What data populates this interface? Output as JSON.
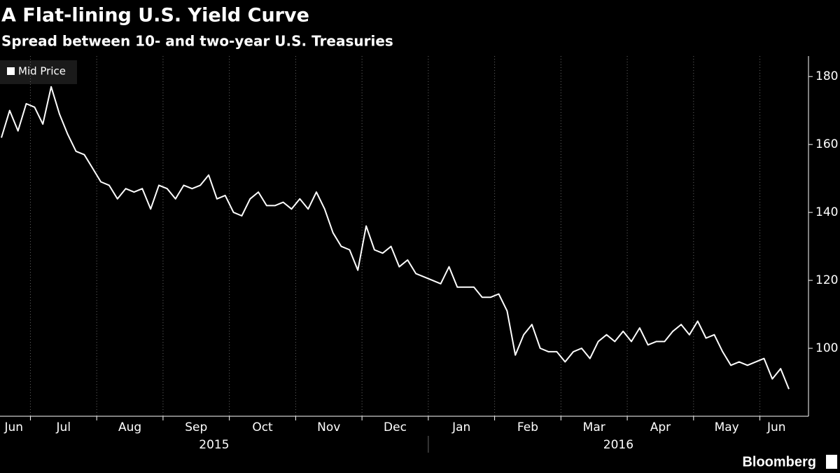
{
  "chart_data": {
    "type": "line",
    "title": "A Flat-lining U.S. Yield Curve",
    "subtitle": "Spread between 10- and two-year U.S. Treasuries",
    "source": "Bloomberg",
    "x": [
      "2015-06",
      "2015-06",
      "2015-06",
      "2015-06",
      "2015-07",
      "2015-07",
      "2015-07",
      "2015-07",
      "2015-07",
      "2015-07",
      "2015-07",
      "2015-07",
      "2015-08",
      "2015-08",
      "2015-08",
      "2015-08",
      "2015-08",
      "2015-08",
      "2015-08",
      "2015-08",
      "2015-09",
      "2015-09",
      "2015-09",
      "2015-09",
      "2015-09",
      "2015-09",
      "2015-09",
      "2015-09",
      "2015-10",
      "2015-10",
      "2015-10",
      "2015-10",
      "2015-10",
      "2015-10",
      "2015-10",
      "2015-10",
      "2015-11",
      "2015-11",
      "2015-11",
      "2015-11",
      "2015-11",
      "2015-11",
      "2015-11",
      "2015-11",
      "2015-12",
      "2015-12",
      "2015-12",
      "2015-12",
      "2015-12",
      "2015-12",
      "2015-12",
      "2015-12",
      "2016-01",
      "2016-01",
      "2016-01",
      "2016-01",
      "2016-01",
      "2016-01",
      "2016-01",
      "2016-01",
      "2016-02",
      "2016-02",
      "2016-02",
      "2016-02",
      "2016-02",
      "2016-02",
      "2016-02",
      "2016-02",
      "2016-03",
      "2016-03",
      "2016-03",
      "2016-03",
      "2016-03",
      "2016-03",
      "2016-03",
      "2016-03",
      "2016-04",
      "2016-04",
      "2016-04",
      "2016-04",
      "2016-04",
      "2016-04",
      "2016-04",
      "2016-04",
      "2016-05",
      "2016-05",
      "2016-05",
      "2016-05",
      "2016-05",
      "2016-05",
      "2016-05",
      "2016-05",
      "2016-06",
      "2016-06",
      "2016-06",
      "2016-06"
    ],
    "series": [
      {
        "name": "Mid Price",
        "color": "#ffffff",
        "values": [
          162,
          170,
          164,
          172,
          171,
          166,
          177,
          169,
          163,
          158,
          157,
          153,
          149,
          148,
          144,
          147,
          146,
          147,
          141,
          148,
          147,
          144,
          148,
          147,
          148,
          151,
          144,
          145,
          140,
          139,
          144,
          146,
          142,
          142,
          143,
          141,
          144,
          141,
          146,
          141,
          134,
          130,
          129,
          123,
          136,
          129,
          128,
          130,
          124,
          126,
          122,
          121,
          120,
          119,
          124,
          118,
          118,
          118,
          115,
          115,
          116,
          111,
          98,
          104,
          107,
          100,
          99,
          99,
          96,
          99,
          100,
          97,
          102,
          104,
          102,
          105,
          102,
          106,
          101,
          102,
          102,
          105,
          107,
          104,
          108,
          103,
          104,
          99,
          95,
          96,
          95,
          96,
          97,
          91,
          94,
          88
        ]
      }
    ],
    "xticks": [
      {
        "value": "2015-06",
        "label": "Jun"
      },
      {
        "value": "2015-07",
        "label": "Jul"
      },
      {
        "value": "2015-08",
        "label": "Aug"
      },
      {
        "value": "2015-09",
        "label": "Sep"
      },
      {
        "value": "2015-10",
        "label": "Oct"
      },
      {
        "value": "2015-11",
        "label": "Nov"
      },
      {
        "value": "2015-12",
        "label": "Dec"
      },
      {
        "value": "2016-01",
        "label": "Jan"
      },
      {
        "value": "2016-02",
        "label": "Feb"
      },
      {
        "value": "2016-03",
        "label": "Mar"
      },
      {
        "value": "2016-04",
        "label": "Apr"
      },
      {
        "value": "2016-05",
        "label": "May"
      },
      {
        "value": "2016-06",
        "label": "Jun"
      }
    ],
    "years": [
      "2015",
      "2016"
    ],
    "ylim": [
      80,
      185
    ],
    "yticks": [
      100,
      120,
      140,
      160,
      180
    ],
    "grid": true,
    "legend": "top-left"
  }
}
